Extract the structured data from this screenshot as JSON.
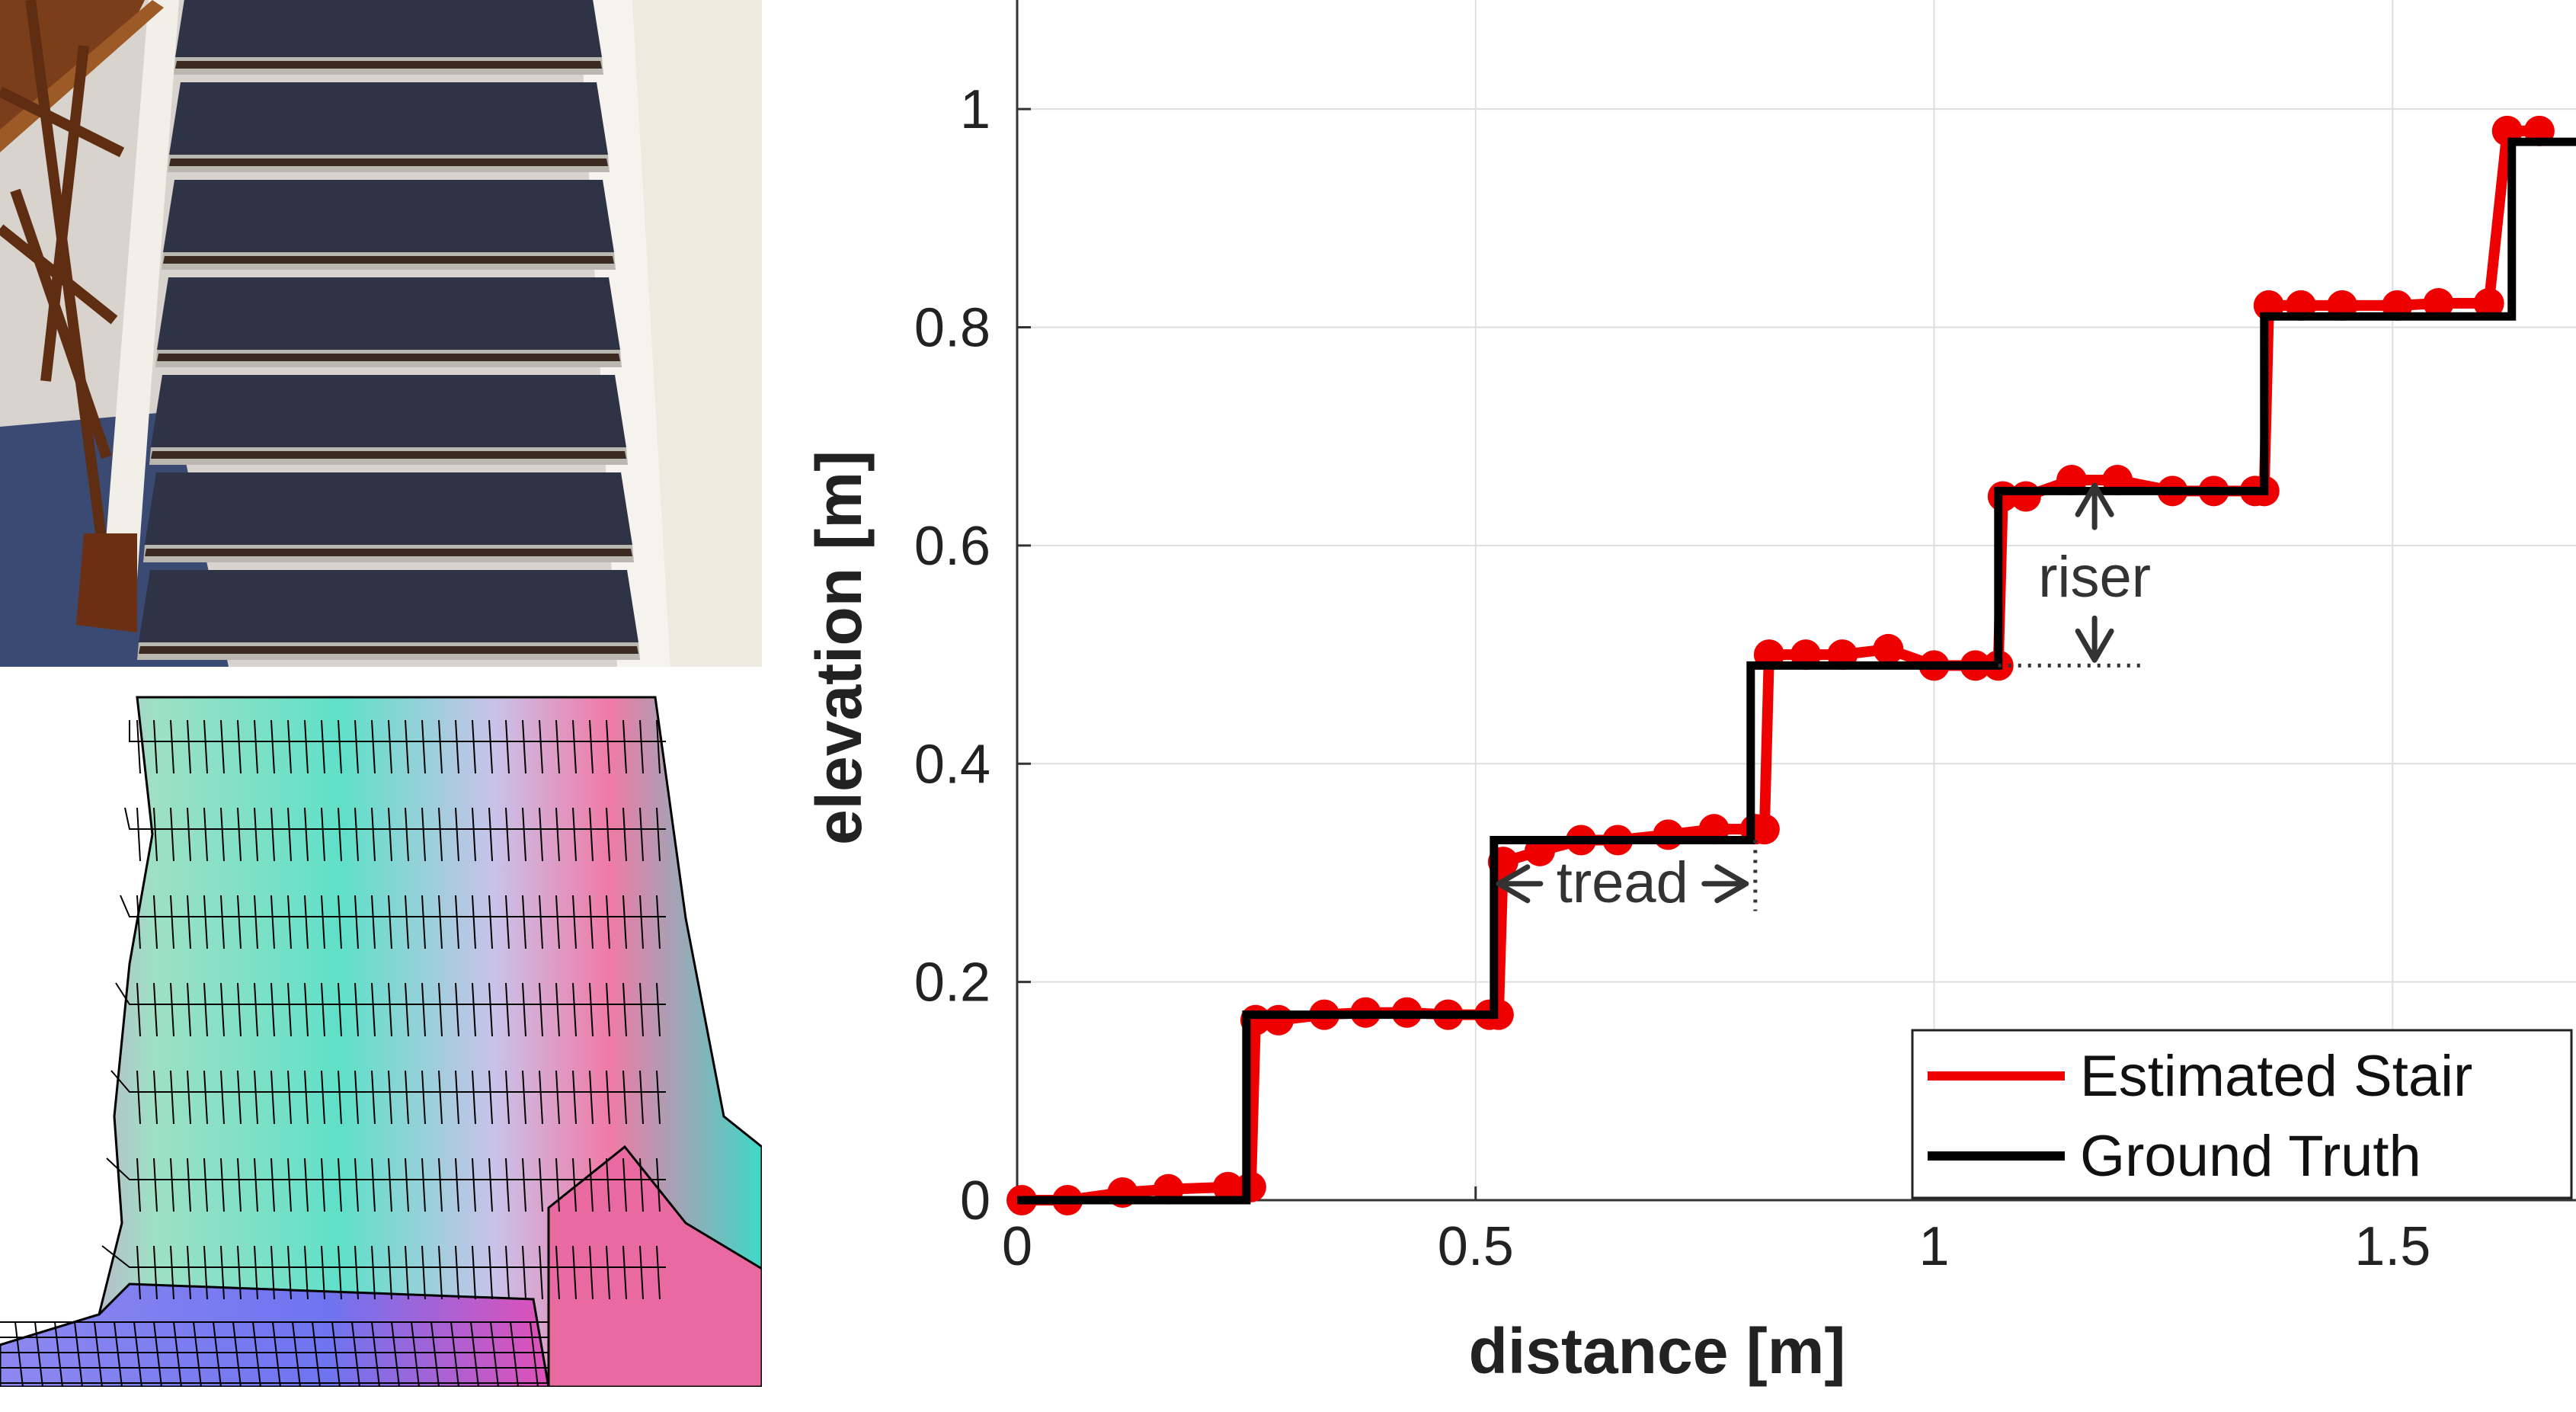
{
  "chart_data": {
    "type": "line",
    "xlabel": "distance [m]",
    "ylabel": "elevation [m]",
    "xlim": [
      0,
      1.7
    ],
    "ylim": [
      0,
      1.1
    ],
    "xticks": [
      0,
      0.5,
      1,
      1.5
    ],
    "xtick_labels": [
      "0",
      "0.5",
      "1",
      "1.5"
    ],
    "yticks": [
      0,
      0.2,
      0.4,
      0.6,
      0.8,
      1.0
    ],
    "ytick_labels": [
      "0",
      "0.2",
      "0.4",
      "0.6",
      "0.8",
      "1"
    ],
    "grid": true,
    "legend": "bottom-right",
    "series": [
      {
        "name": "Estimated Stair",
        "color": "#ee0000",
        "style": "line-with-markers",
        "x": [
          0.005,
          0.055,
          0.115,
          0.165,
          0.23,
          0.255,
          0.26,
          0.285,
          0.335,
          0.38,
          0.425,
          0.47,
          0.515,
          0.525,
          0.53,
          0.57,
          0.615,
          0.655,
          0.71,
          0.76,
          0.805,
          0.815,
          0.82,
          0.86,
          0.9,
          0.95,
          1.0,
          1.045,
          1.07,
          1.075,
          1.1,
          1.15,
          1.2,
          1.26,
          1.305,
          1.35,
          1.36,
          1.365,
          1.4,
          1.445,
          1.505,
          1.55,
          1.605,
          1.625,
          1.66
        ],
        "y": [
          0.0,
          0.0,
          0.007,
          0.01,
          0.012,
          0.012,
          0.165,
          0.165,
          0.17,
          0.172,
          0.172,
          0.17,
          0.17,
          0.17,
          0.31,
          0.32,
          0.33,
          0.33,
          0.335,
          0.34,
          0.34,
          0.34,
          0.5,
          0.5,
          0.5,
          0.505,
          0.49,
          0.49,
          0.49,
          0.645,
          0.645,
          0.66,
          0.66,
          0.65,
          0.65,
          0.65,
          0.65,
          0.82,
          0.82,
          0.82,
          0.82,
          0.822,
          0.822,
          0.98,
          0.98
        ]
      },
      {
        "name": "Ground Truth",
        "color": "#000000",
        "style": "step",
        "x": [
          0.0,
          0.25,
          0.25,
          0.52,
          0.52,
          0.8,
          0.8,
          1.07,
          1.07,
          1.36,
          1.36,
          1.63,
          1.63,
          1.7
        ],
        "y": [
          0.0,
          0.0,
          0.17,
          0.17,
          0.33,
          0.33,
          0.49,
          0.49,
          0.65,
          0.65,
          0.81,
          0.81,
          0.97,
          0.97
        ]
      }
    ],
    "annotations": [
      {
        "text": "tread",
        "x": 0.66,
        "y": 0.29
      },
      {
        "text": "riser",
        "x": 1.175,
        "y": 0.57
      }
    ]
  },
  "images": {
    "top": "stair-photo",
    "bottom": "stair-elevation-mesh"
  }
}
